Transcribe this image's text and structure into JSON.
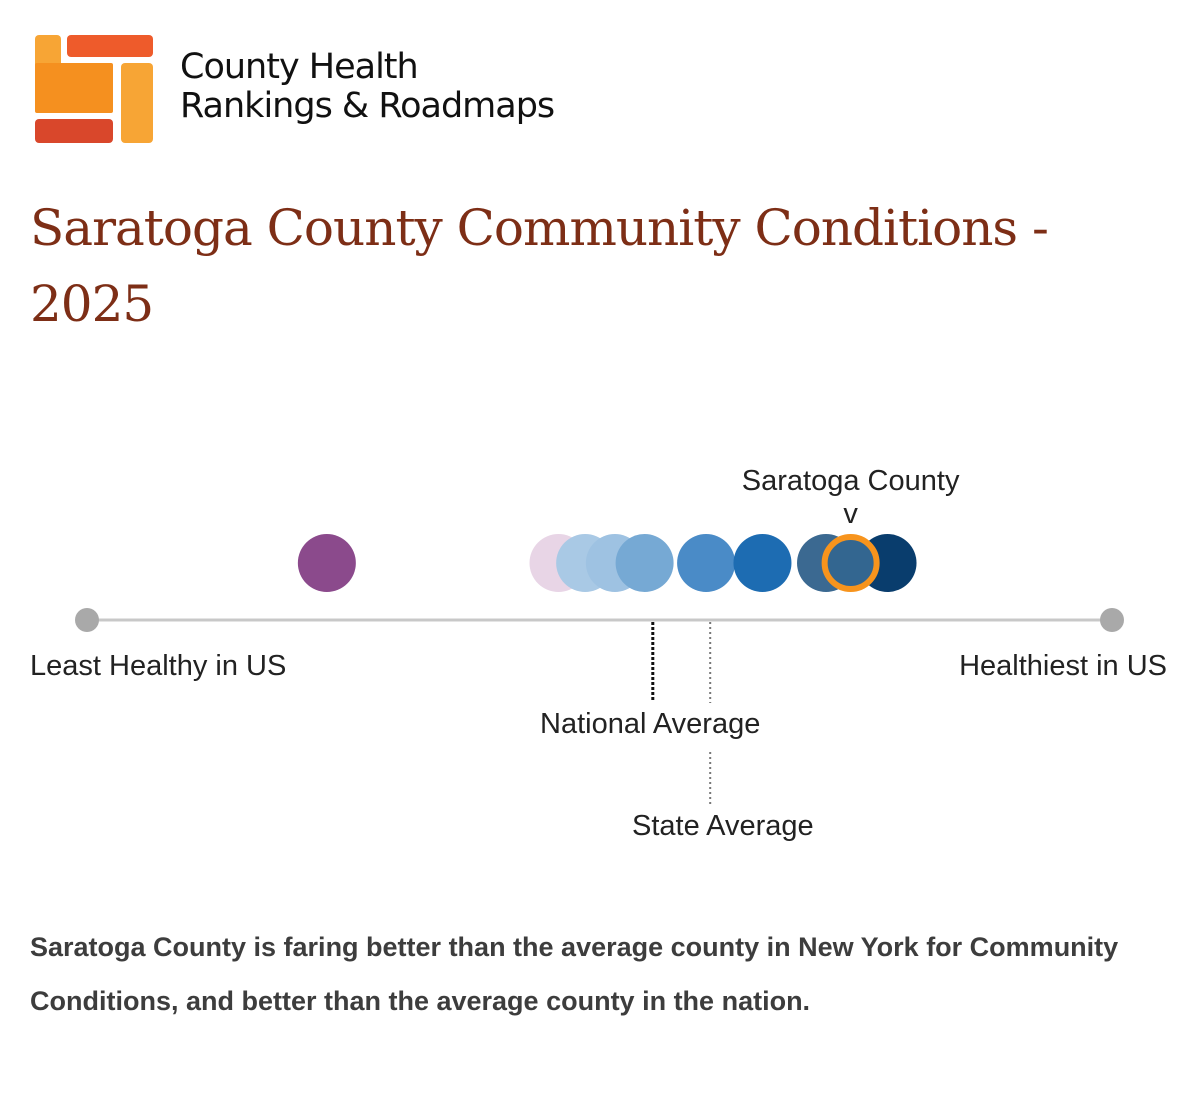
{
  "logo": {
    "line1": "County Health",
    "line2": "Rankings & Roadmaps"
  },
  "title": "Saratoga County Community Conditions - 2025",
  "chart_data": {
    "type": "scatter",
    "scale": "relative health position, 0 = least healthy in US, 1 = healthiest in US",
    "axis_labels": {
      "left": "Least Healthy in US",
      "right": "Healthiest in US"
    },
    "points": [
      {
        "value": 0.234,
        "color": "#8b4a8c"
      },
      {
        "value": 0.46,
        "color": "#e8d5e6"
      },
      {
        "value": 0.486,
        "color": "#a9c9e5"
      },
      {
        "value": 0.515,
        "color": "#9ec2e2"
      },
      {
        "value": 0.544,
        "color": "#76a9d4"
      },
      {
        "value": 0.604,
        "color": "#4a8bc7"
      },
      {
        "value": 0.659,
        "color": "#1d6cb2"
      },
      {
        "value": 0.721,
        "color": "#3b6991"
      },
      {
        "value": 0.781,
        "color": "#093d6d"
      }
    ],
    "highlight": {
      "label": "Saratoga County",
      "marker": "v",
      "value": 0.745,
      "color": "#336690",
      "outline": "#f7941d"
    },
    "references": [
      {
        "label": "National Average",
        "value": 0.552,
        "style": "dotted-bold"
      },
      {
        "label": "State Average",
        "value": 0.608,
        "style": "dotted-light"
      }
    ]
  },
  "summary": "Saratoga County is faring better than the average county in New York for Community Conditions, and better than the average county in the nation."
}
